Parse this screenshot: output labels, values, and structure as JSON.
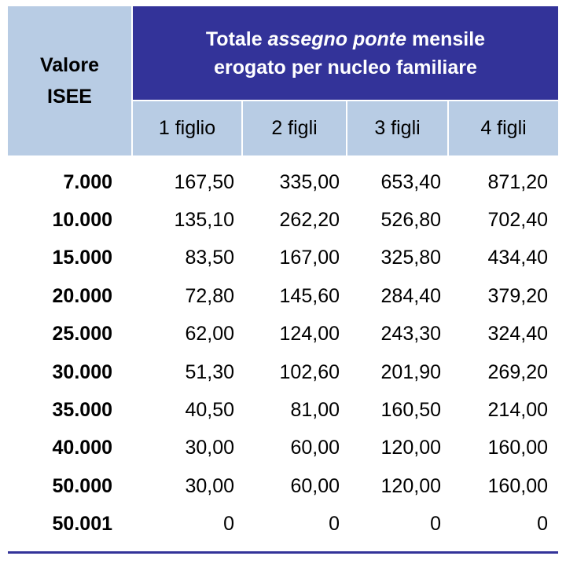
{
  "header": {
    "isee_label_line1": "Valore",
    "isee_label_line2": "ISEE",
    "title_part1": "Totale ",
    "title_italic": "assegno ponte",
    "title_part2": " mensile",
    "title_line2": "erogato per nucleo familiare",
    "columns": [
      "1 figlio",
      "2 figli",
      "3 figli",
      "4 figli"
    ]
  },
  "colors": {
    "header_dark": "#333399",
    "header_light": "#b8cce4"
  },
  "rows": [
    {
      "isee": "7.000",
      "values": [
        "167,50",
        "335,00",
        "653,40",
        "871,20"
      ]
    },
    {
      "isee": "10.000",
      "values": [
        "135,10",
        "262,20",
        "526,80",
        "702,40"
      ]
    },
    {
      "isee": "15.000",
      "values": [
        "83,50",
        "167,00",
        "325,80",
        "434,40"
      ]
    },
    {
      "isee": "20.000",
      "values": [
        "72,80",
        "145,60",
        "284,40",
        "379,20"
      ]
    },
    {
      "isee": "25.000",
      "values": [
        "62,00",
        "124,00",
        "243,30",
        "324,40"
      ]
    },
    {
      "isee": "30.000",
      "values": [
        "51,30",
        "102,60",
        "201,90",
        "269,20"
      ]
    },
    {
      "isee": "35.000",
      "values": [
        "40,50",
        "81,00",
        "160,50",
        "214,00"
      ]
    },
    {
      "isee": "40.000",
      "values": [
        "30,00",
        "60,00",
        "120,00",
        "160,00"
      ]
    },
    {
      "isee": "50.000",
      "values": [
        "30,00",
        "60,00",
        "120,00",
        "160,00"
      ]
    },
    {
      "isee": "50.001",
      "values": [
        "0",
        "0",
        "0",
        "0"
      ]
    }
  ]
}
